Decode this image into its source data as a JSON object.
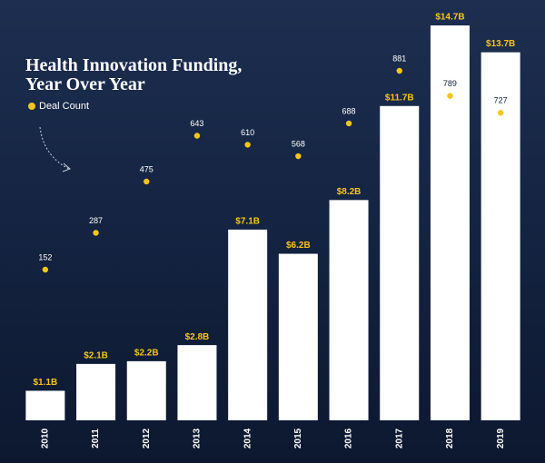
{
  "chart_data": {
    "type": "bar",
    "title": "Health Innovation Funding, Year Over Year",
    "categories": [
      "2010",
      "2011",
      "2012",
      "2013",
      "2014",
      "2015",
      "2016",
      "2017",
      "2018",
      "2019"
    ],
    "series": [
      {
        "type": "bar",
        "color": "#ffffff",
        "values": [
          1.1,
          2.1,
          2.2,
          2.8,
          7.1,
          6.2,
          8.2,
          11.7,
          14.7,
          13.7
        ],
        "value_labels": [
          "$1.1B",
          "$2.1B",
          "$2.2B",
          "$2.8B",
          "$7.1B",
          "$6.2B",
          "$8.2B",
          "$11.7B",
          "$14.7B",
          "$13.7B"
        ],
        "label_color": "#f5c518"
      },
      {
        "type": "scatter",
        "name": "Deal Count",
        "axis": "y2",
        "color": "#f5c518",
        "values": [
          152,
          287,
          475,
          643,
          610,
          568,
          688,
          881,
          789,
          727
        ]
      }
    ],
    "legend": "top-left"
  }
}
